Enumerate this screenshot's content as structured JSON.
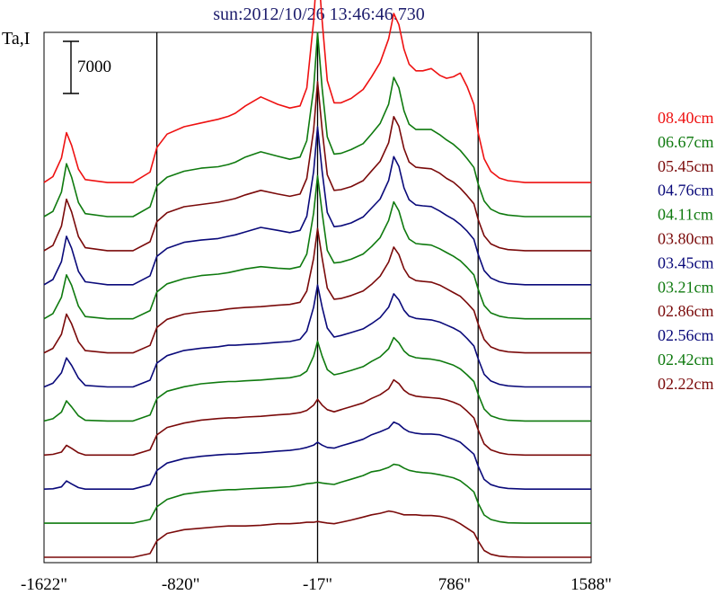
{
  "chart_data": {
    "type": "line",
    "title": "sun:2012/10/26 13:46:46.730",
    "ylabel": "Ta,I",
    "xlabel": "",
    "x_ticks": [
      -1622,
      -820,
      -17,
      786,
      1588
    ],
    "x_tick_labels": [
      "-1622\"",
      "-820\"",
      "-17\"",
      "786\"",
      "1588\""
    ],
    "xlim": [
      -1622,
      1588
    ],
    "vlines": [
      -960,
      -17,
      925
    ],
    "scale_bar": {
      "label": "7000",
      "value": 7000
    },
    "grid": false,
    "legend_position": "right",
    "y_step": 6000,
    "x": [
      -1622,
      -1570,
      -1520,
      -1490,
      -1460,
      -1420,
      -1380,
      -1250,
      -1100,
      -1000,
      -960,
      -900,
      -800,
      -700,
      -600,
      -540,
      -500,
      -440,
      -350,
      -250,
      -180,
      -120,
      -80,
      -40,
      -17,
      10,
      40,
      80,
      120,
      180,
      250,
      300,
      350,
      400,
      430,
      460,
      490,
      520,
      560,
      600,
      650,
      700,
      740,
      780,
      820,
      860,
      900,
      925,
      960,
      1000,
      1050,
      1100,
      1200,
      1300,
      1400,
      1500,
      1588
    ],
    "series": [
      {
        "name": "02.22cm",
        "color": "#7a0a0a",
        "values": [
          300,
          300,
          300,
          300,
          300,
          300,
          300,
          300,
          300,
          800,
          2500,
          3500,
          4000,
          4200,
          4400,
          4500,
          4500,
          4500,
          4600,
          4800,
          4800,
          4900,
          5000,
          5000,
          5100,
          5000,
          4900,
          4800,
          5000,
          5300,
          5700,
          6000,
          6200,
          6500,
          6400,
          6200,
          6000,
          6000,
          6000,
          5900,
          5900,
          5800,
          5600,
          5300,
          4800,
          4200,
          3600,
          2500,
          1200,
          700,
          450,
          350,
          300,
          300,
          300,
          300,
          300
        ]
      },
      {
        "name": "02.42cm",
        "color": "#0f7a0f",
        "values": [
          300,
          300,
          300,
          300,
          300,
          300,
          300,
          300,
          300,
          800,
          2500,
          3500,
          4200,
          4500,
          4700,
          4800,
          4800,
          4900,
          5000,
          5100,
          5200,
          5400,
          5600,
          5700,
          5800,
          5700,
          5600,
          5500,
          5800,
          6200,
          6700,
          7200,
          7400,
          7800,
          8200,
          8100,
          7700,
          7400,
          7200,
          7100,
          7000,
          6800,
          6600,
          6400,
          6000,
          5300,
          4500,
          3000,
          1400,
          800,
          500,
          350,
          300,
          300,
          300,
          300,
          300
        ]
      },
      {
        "name": "02.56cm",
        "color": "#0a0a7a",
        "values": [
          300,
          350,
          600,
          1400,
          1000,
          500,
          300,
          300,
          300,
          900,
          2800,
          3800,
          4400,
          4700,
          4900,
          5000,
          5000,
          5100,
          5200,
          5400,
          5500,
          5700,
          5900,
          6200,
          6600,
          6200,
          5900,
          5800,
          6100,
          6500,
          7000,
          7600,
          8000,
          8500,
          9300,
          9000,
          8400,
          8000,
          7800,
          7700,
          7700,
          7600,
          7300,
          7000,
          6600,
          5800,
          5000,
          3400,
          1600,
          900,
          550,
          400,
          300,
          300,
          300,
          300,
          300
        ]
      },
      {
        "name": "02.86cm",
        "color": "#7a0a0a",
        "values": [
          300,
          400,
          700,
          1600,
          1200,
          600,
          300,
          300,
          300,
          1000,
          3000,
          4000,
          4600,
          5000,
          5200,
          5300,
          5300,
          5400,
          5500,
          5700,
          5800,
          6000,
          6300,
          7000,
          7800,
          7000,
          6400,
          6100,
          6400,
          6800,
          7300,
          7900,
          8400,
          9200,
          10400,
          9900,
          9000,
          8500,
          8200,
          8100,
          8000,
          7900,
          7700,
          7400,
          7000,
          6200,
          5300,
          3700,
          1800,
          1000,
          600,
          400,
          300,
          300,
          300,
          300,
          300
        ]
      },
      {
        "name": "03.21cm",
        "color": "#0f7a0f",
        "values": [
          300,
          600,
          1500,
          3000,
          2200,
          1000,
          400,
          300,
          300,
          1100,
          3300,
          4300,
          4900,
          5300,
          5500,
          5600,
          5600,
          5700,
          5800,
          6000,
          6100,
          6400,
          7000,
          9000,
          11000,
          9000,
          7200,
          6500,
          6700,
          7100,
          7600,
          8300,
          8900,
          10000,
          11500,
          10800,
          9700,
          9100,
          8800,
          8700,
          8600,
          8400,
          8100,
          7800,
          7300,
          6500,
          5600,
          3900,
          1900,
          1000,
          600,
          400,
          300,
          300,
          300,
          300,
          300
        ]
      },
      {
        "name": "03.45cm",
        "color": "#0a0a7a",
        "values": [
          300,
          800,
          2200,
          4200,
          3200,
          1500,
          500,
          300,
          300,
          1200,
          3500,
          4500,
          5200,
          5500,
          5700,
          5900,
          5900,
          6000,
          6100,
          6300,
          6400,
          6700,
          7800,
          11000,
          14000,
          11000,
          8200,
          7000,
          7200,
          7600,
          8100,
          8800,
          9600,
          11000,
          12800,
          12000,
          10600,
          9800,
          9500,
          9400,
          9300,
          9000,
          8600,
          8200,
          7700,
          6800,
          5800,
          4100,
          2000,
          1100,
          650,
          450,
          300,
          300,
          300,
          300,
          300
        ]
      },
      {
        "name": "03.80cm",
        "color": "#7a0a0a",
        "values": [
          300,
          900,
          2800,
          5500,
          4200,
          1800,
          600,
          300,
          300,
          1300,
          3700,
          4800,
          5500,
          5800,
          6000,
          6200,
          6300,
          6400,
          6500,
          6700,
          6800,
          7100,
          8600,
          13000,
          17000,
          13000,
          9000,
          7500,
          7600,
          8000,
          8600,
          9500,
          10600,
          12500,
          14500,
          13500,
          11600,
          10500,
          10000,
          9900,
          9800,
          9400,
          8900,
          8400,
          7900,
          7000,
          6000,
          4200,
          2100,
          1100,
          650,
          450,
          300,
          300,
          300,
          300,
          300
        ]
      },
      {
        "name": "04.11cm",
        "color": "#0f7a0f",
        "values": [
          300,
          1000,
          3200,
          6200,
          4800,
          2000,
          600,
          300,
          300,
          1400,
          3900,
          5000,
          5700,
          6100,
          6300,
          6500,
          6700,
          7000,
          7300,
          7100,
          7000,
          7300,
          9000,
          14500,
          19500,
          14500,
          9500,
          7800,
          7900,
          8300,
          9000,
          10000,
          11200,
          13500,
          16000,
          14800,
          12400,
          11000,
          10400,
          10300,
          10200,
          9700,
          9200,
          8700,
          8100,
          7200,
          6200,
          4300,
          2100,
          1100,
          650,
          450,
          300,
          300,
          300,
          300,
          300
        ]
      },
      {
        "name": "04.76cm",
        "color": "#0a0a7a",
        "values": [
          300,
          1000,
          3400,
          6800,
          5200,
          2100,
          700,
          300,
          300,
          1500,
          4100,
          5200,
          6000,
          6300,
          6500,
          6800,
          7000,
          7400,
          8000,
          7600,
          7300,
          7600,
          9500,
          15500,
          21500,
          15500,
          10000,
          8100,
          8200,
          8600,
          9400,
          10600,
          11800,
          14300,
          17500,
          16200,
          13300,
          11700,
          11000,
          10900,
          10800,
          10200,
          9600,
          9100,
          8400,
          7500,
          6400,
          4400,
          2200,
          1200,
          700,
          450,
          300,
          300,
          300,
          300,
          300
        ]
      },
      {
        "name": "05.45cm",
        "color": "#7a0a0a",
        "values": [
          300,
          1000,
          3600,
          7200,
          5500,
          2200,
          700,
          300,
          300,
          1500,
          4200,
          5400,
          6200,
          6500,
          6800,
          7100,
          7300,
          7800,
          8400,
          7900,
          7600,
          7900,
          10000,
          16500,
          23000,
          16500,
          10500,
          8400,
          8500,
          8900,
          9700,
          11000,
          12300,
          14800,
          18300,
          17000,
          14000,
          12200,
          11500,
          11400,
          11300,
          10700,
          10000,
          9500,
          8700,
          7700,
          6600,
          4500,
          2300,
          1200,
          700,
          450,
          300,
          300,
          300,
          300,
          300
        ]
      },
      {
        "name": "06.67cm",
        "color": "#0f7a0f",
        "values": [
          300,
          1000,
          3600,
          7400,
          5600,
          2200,
          700,
          300,
          300,
          1600,
          4400,
          5600,
          6400,
          6800,
          7000,
          7300,
          7600,
          8300,
          9000,
          8400,
          8000,
          8300,
          10500,
          17500,
          25000,
          17500,
          11000,
          8700,
          8800,
          9300,
          10100,
          11400,
          12800,
          15400,
          19000,
          17600,
          14500,
          12700,
          12000,
          12000,
          12000,
          11300,
          10600,
          10000,
          9200,
          8100,
          6900,
          4700,
          2400,
          1300,
          750,
          500,
          300,
          300,
          300,
          300,
          300
        ]
      },
      {
        "name": "08.40cm",
        "color": "#ee1111",
        "values": [
          300,
          1100,
          3600,
          7000,
          5300,
          2100,
          700,
          300,
          300,
          1700,
          5000,
          6800,
          7800,
          8300,
          8800,
          9200,
          9600,
          10600,
          11800,
          10800,
          10300,
          10600,
          13000,
          22000,
          30000,
          22000,
          14000,
          11000,
          11000,
          11600,
          12800,
          14500,
          16400,
          19600,
          23000,
          21500,
          18200,
          16200,
          15300,
          15300,
          15600,
          14700,
          14300,
          14500,
          15000,
          13200,
          10800,
          7000,
          3500,
          1800,
          900,
          550,
          300,
          300,
          300,
          300,
          300
        ]
      }
    ]
  }
}
